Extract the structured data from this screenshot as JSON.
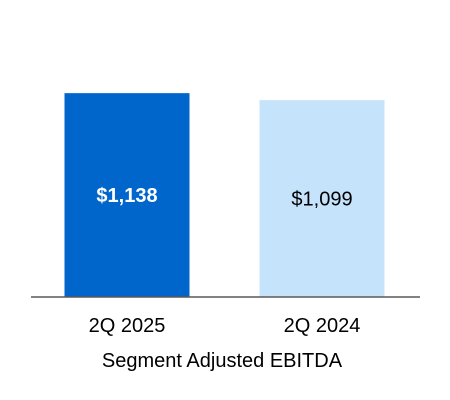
{
  "chart_data": {
    "type": "bar",
    "categories": [
      "2Q 2025",
      "2Q 2024"
    ],
    "values": [
      1138,
      1099
    ],
    "value_labels": [
      "$1,138",
      "$1,099"
    ],
    "xlabel": "Segment Adjusted EBITDA",
    "ylabel": "",
    "ylim": [
      0,
      1150
    ],
    "grid": false,
    "bar_colors": [
      "#0066cc",
      "#c5e3fb"
    ],
    "label_colors": [
      "#ffffff",
      "#000000"
    ],
    "axis_color": "#595959"
  }
}
